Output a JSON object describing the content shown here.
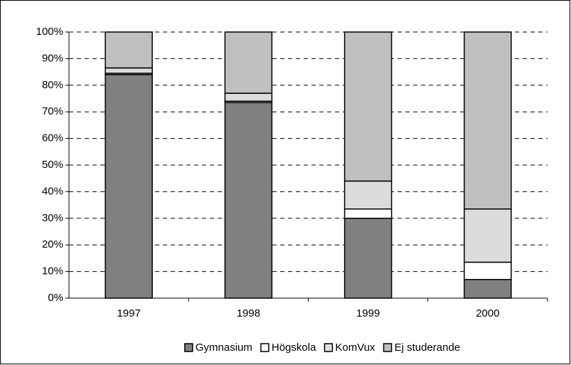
{
  "chart_data": {
    "type": "stacked_bar",
    "categories": [
      "1997",
      "1998",
      "1999",
      "2000"
    ],
    "series": [
      {
        "name": "Gymnasium",
        "color": "#808080",
        "values": [
          84,
          73.5,
          30,
          7
        ]
      },
      {
        "name": "Högskola",
        "color": "#ffffff",
        "values": [
          0.5,
          0.5,
          3.5,
          6.5
        ]
      },
      {
        "name": "KomVux",
        "color": "#dcdcdc",
        "values": [
          2,
          3,
          10.5,
          20
        ]
      },
      {
        "name": "Ej studerande",
        "color": "#c0c0c0",
        "values": [
          13.5,
          23,
          56,
          66.5
        ]
      }
    ],
    "ylim": [
      0,
      100
    ],
    "yticks": [
      {
        "value": 0,
        "label": "0%"
      },
      {
        "value": 10,
        "label": "10%"
      },
      {
        "value": 20,
        "label": "20%"
      },
      {
        "value": 30,
        "label": "30%"
      },
      {
        "value": 40,
        "label": "40%"
      },
      {
        "value": 50,
        "label": "50%"
      },
      {
        "value": 60,
        "label": "60%"
      },
      {
        "value": 70,
        "label": "70%"
      },
      {
        "value": 80,
        "label": "80%"
      },
      {
        "value": 90,
        "label": "90%"
      },
      {
        "value": 100,
        "label": "100%"
      }
    ],
    "grid": true,
    "legend": "bottom"
  }
}
